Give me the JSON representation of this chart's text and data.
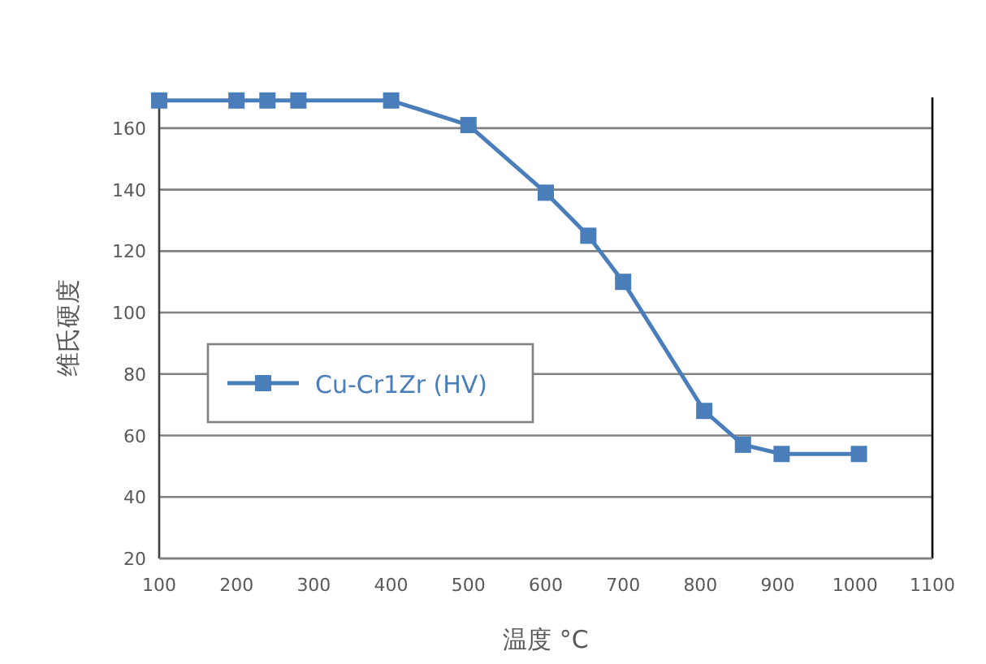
{
  "chart_data": {
    "type": "line",
    "xlabel": "温度 °C",
    "ylabel": "维氏硬度",
    "x": [
      100,
      200,
      240,
      280,
      400,
      500,
      600,
      655,
      700,
      805,
      855,
      905,
      1005
    ],
    "series": [
      {
        "name": "Cu-Cr1Zr (HV)",
        "color": "#4a7ebb",
        "values": [
          169,
          169,
          169,
          169,
          169,
          161,
          139,
          125,
          110,
          68,
          57,
          54,
          54
        ]
      }
    ],
    "xlim": [
      100,
      1100
    ],
    "xticks": [
      100,
      200,
      300,
      400,
      500,
      600,
      700,
      800,
      900,
      1000,
      1100
    ],
    "ylim": [
      20,
      170
    ],
    "yticks": [
      20,
      40,
      60,
      80,
      100,
      120,
      140,
      160
    ],
    "grid": "y",
    "legend": "left",
    "marker": "square",
    "line_style": "solid"
  }
}
